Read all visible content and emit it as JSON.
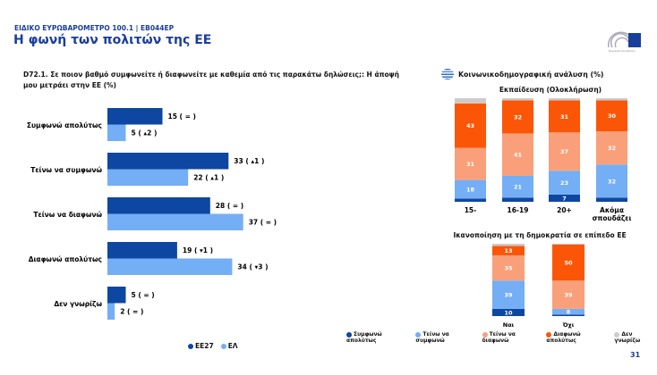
{
  "header": {
    "kicker": "ΕΙΔΙΚΟ ΕΥΡΩΒΑΡΟΜΕΤΡΟ 100.1 | EB044EP",
    "title": "Η φωνή των πολιτών της ΕΕ",
    "logo_text": "Ευρωπαϊκό Κοινοβούλιο"
  },
  "question": "D72.1. Σε ποιον βαθμό συμφωνείτε ή διαφωνείτε με καθεμία από τις παρακάτω δηλώσεις;: Η άποψή μου μετράει στην ΕΕ (%)",
  "socio_title": "Κοινωνικοδημογραφική ανάλυση (%)",
  "page_number": "31",
  "colors": {
    "abs_agree": "#0d47a1",
    "tend_agree": "#74aef5",
    "tend_disagree": "#f9a07a",
    "abs_disagree": "#fb5607",
    "dk": "#cccccc"
  },
  "chart_data": [
    {
      "type": "bar",
      "orientation": "horizontal",
      "categories": [
        "Συμφωνώ απολύτως",
        "Τείνω να συμφωνώ",
        "Τείνω να διαφωνώ",
        "Διαφωνώ απολύτως",
        "Δεν γνωρίζω"
      ],
      "series": [
        {
          "name": "ΕΕ27",
          "values": [
            15,
            33,
            28,
            19,
            5
          ],
          "labels": [
            "15 ( = )",
            "33 ( ▴1 )",
            "28 ( = )",
            "19 ( ▾1 )",
            "5 ( = )"
          ]
        },
        {
          "name": "ΕΛ",
          "values": [
            5,
            22,
            37,
            34,
            2
          ],
          "labels": [
            "5 ( ▴2 )",
            "22 ( ▴1 )",
            "37 ( = )",
            "34 ( ▾3 )",
            "2 ( = )"
          ]
        }
      ]
    },
    {
      "type": "bar",
      "stacked": true,
      "title": "Εκπαίδευση (Ολοκλήρωση)",
      "categories": [
        "15-",
        "16-19",
        "20+",
        "Ακόμα σπουδάζει"
      ],
      "series": [
        {
          "name": "Συμφωνώ απολύτως",
          "values": [
            3,
            4,
            7,
            4
          ]
        },
        {
          "name": "Τείνω να συμφωνώ",
          "values": [
            18,
            21,
            23,
            32
          ]
        },
        {
          "name": "Τείνω να διαφωνώ",
          "values": [
            31,
            41,
            37,
            32
          ]
        },
        {
          "name": "Διαφωνώ απολύτως",
          "values": [
            43,
            32,
            31,
            30
          ]
        },
        {
          "name": "Δεν γνωρίζω",
          "values": [
            5,
            2,
            2,
            2
          ]
        }
      ]
    },
    {
      "type": "bar",
      "stacked": true,
      "title": "Ικανοποίηση με τη δημοκρατία σε επίπεδο ΕΕ",
      "categories": [
        "Ναι",
        "Όχι"
      ],
      "series": [
        {
          "name": "Συμφωνώ απολύτως",
          "values": [
            10,
            2
          ]
        },
        {
          "name": "Τείνω να συμφωνώ",
          "values": [
            39,
            8
          ]
        },
        {
          "name": "Τείνω να διαφωνώ",
          "values": [
            35,
            39
          ]
        },
        {
          "name": "Διαφωνώ απολύτως",
          "values": [
            13,
            50
          ]
        },
        {
          "name": "Δεν γνωρίζω",
          "values": [
            3,
            1
          ]
        }
      ]
    }
  ]
}
